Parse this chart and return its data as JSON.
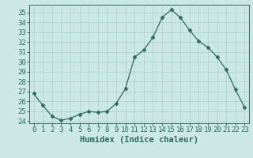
{
  "x": [
    0,
    1,
    2,
    3,
    4,
    5,
    6,
    7,
    8,
    9,
    10,
    11,
    12,
    13,
    14,
    15,
    16,
    17,
    18,
    19,
    20,
    21,
    22,
    23
  ],
  "y": [
    26.8,
    25.6,
    24.5,
    24.1,
    24.3,
    24.7,
    25.0,
    24.9,
    25.0,
    25.8,
    27.3,
    30.5,
    31.2,
    32.5,
    34.5,
    35.3,
    34.5,
    33.2,
    32.1,
    31.5,
    30.5,
    29.2,
    27.2,
    25.4
  ],
  "xlim": [
    -0.5,
    23.5
  ],
  "ylim": [
    23.8,
    35.8
  ],
  "yticks": [
    24,
    25,
    26,
    27,
    28,
    29,
    30,
    31,
    32,
    33,
    34,
    35
  ],
  "xticks": [
    0,
    1,
    2,
    3,
    4,
    5,
    6,
    7,
    8,
    9,
    10,
    11,
    12,
    13,
    14,
    15,
    16,
    17,
    18,
    19,
    20,
    21,
    22,
    23
  ],
  "xlabel": "Humidex (Indice chaleur)",
  "line_color": "#2e6b5e",
  "marker": "D",
  "marker_size": 2.5,
  "bg_color": "#cce8e4",
  "grid_color": "#aad0ca",
  "axis_color": "#2e6b5e",
  "tick_color": "#2e6b5e",
  "label_color": "#2e6b5e",
  "font_family": "monospace",
  "xlabel_fontsize": 7.5,
  "tick_fontsize": 6.5
}
